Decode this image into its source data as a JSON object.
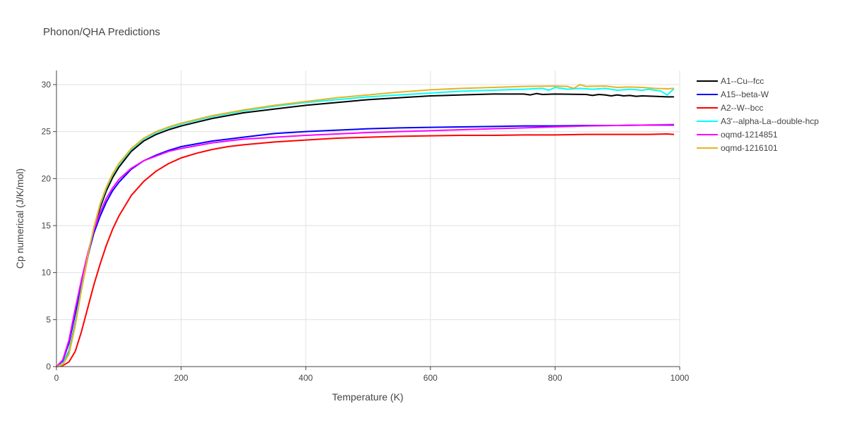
{
  "chart_data": {
    "type": "line",
    "title": "Phonon/QHA Predictions",
    "xlabel": "Temperature (K)",
    "ylabel": "Cp numerical (J/K/mol)",
    "xlim": [
      0,
      1000
    ],
    "ylim": [
      0,
      31.5
    ],
    "x_ticks": [
      0,
      200,
      400,
      600,
      800,
      1000
    ],
    "y_ticks": [
      0,
      5,
      10,
      15,
      20,
      25,
      30
    ],
    "grid": true,
    "legend_position": "right",
    "series": [
      {
        "name": "A1--Cu--fcc",
        "color": "#000000",
        "x": [
          0,
          10,
          20,
          30,
          40,
          50,
          60,
          70,
          80,
          90,
          100,
          120,
          140,
          160,
          180,
          200,
          225,
          250,
          275,
          300,
          350,
          400,
          450,
          500,
          550,
          600,
          650,
          700,
          750,
          760,
          770,
          780,
          800,
          850,
          860,
          870,
          880,
          890,
          900,
          910,
          920,
          930,
          940,
          960,
          980,
          990
        ],
        "y": [
          0,
          0.3,
          1.6,
          4.6,
          8.2,
          11.6,
          14.5,
          16.9,
          18.7,
          20.1,
          21.2,
          22.9,
          24.0,
          24.7,
          25.2,
          25.6,
          26.0,
          26.4,
          26.7,
          27.0,
          27.4,
          27.8,
          28.1,
          28.4,
          28.6,
          28.8,
          28.9,
          29.0,
          29.0,
          28.9,
          29.05,
          28.95,
          29.0,
          28.95,
          28.85,
          28.95,
          28.9,
          28.8,
          28.9,
          28.8,
          28.85,
          28.75,
          28.8,
          28.75,
          28.7,
          28.7
        ]
      },
      {
        "name": "A15--beta-W",
        "color": "#0000ff",
        "x": [
          0,
          10,
          20,
          30,
          40,
          50,
          60,
          70,
          80,
          90,
          100,
          120,
          140,
          160,
          180,
          200,
          225,
          250,
          275,
          300,
          350,
          400,
          450,
          500,
          550,
          600,
          650,
          700,
          750,
          800,
          850,
          900,
          950,
          990
        ],
        "y": [
          0,
          0.6,
          2.5,
          5.6,
          8.8,
          11.7,
          14.2,
          16.0,
          17.5,
          18.7,
          19.6,
          21.0,
          21.9,
          22.5,
          23.0,
          23.4,
          23.7,
          24.0,
          24.2,
          24.4,
          24.8,
          25.0,
          25.15,
          25.3,
          25.4,
          25.45,
          25.5,
          25.55,
          25.6,
          25.6,
          25.65,
          25.65,
          25.7,
          25.7
        ]
      },
      {
        "name": "A2--W--bcc",
        "color": "#ff0000",
        "x": [
          0,
          10,
          20,
          30,
          40,
          50,
          60,
          70,
          80,
          90,
          100,
          120,
          140,
          160,
          180,
          200,
          225,
          250,
          275,
          300,
          350,
          400,
          450,
          500,
          550,
          600,
          650,
          700,
          750,
          800,
          850,
          900,
          950,
          980,
          990
        ],
        "y": [
          0,
          0.1,
          0.5,
          1.6,
          3.7,
          6.2,
          8.7,
          10.9,
          12.9,
          14.6,
          16.0,
          18.2,
          19.7,
          20.8,
          21.6,
          22.2,
          22.7,
          23.1,
          23.4,
          23.6,
          23.9,
          24.1,
          24.3,
          24.4,
          24.5,
          24.55,
          24.6,
          24.6,
          24.65,
          24.65,
          24.7,
          24.7,
          24.7,
          24.75,
          24.7
        ]
      },
      {
        "name": "A3'--alpha-La--double-hcp",
        "color": "#00ffff",
        "x": [
          0,
          10,
          20,
          30,
          40,
          50,
          60,
          70,
          80,
          90,
          100,
          120,
          140,
          160,
          180,
          200,
          225,
          250,
          275,
          300,
          350,
          400,
          450,
          500,
          550,
          600,
          650,
          700,
          750,
          780,
          790,
          800,
          820,
          840,
          860,
          880,
          900,
          920,
          940,
          950,
          960,
          970,
          980,
          990
        ],
        "y": [
          0,
          0.3,
          1.5,
          4.5,
          8.3,
          11.8,
          14.8,
          17.2,
          19.0,
          20.4,
          21.5,
          23.1,
          24.2,
          24.9,
          25.4,
          25.8,
          26.2,
          26.6,
          26.9,
          27.2,
          27.7,
          28.1,
          28.4,
          28.7,
          28.9,
          29.1,
          29.3,
          29.4,
          29.5,
          29.6,
          29.4,
          29.7,
          29.5,
          29.6,
          29.5,
          29.6,
          29.4,
          29.5,
          29.4,
          29.5,
          29.4,
          29.3,
          28.9,
          29.5
        ]
      },
      {
        "name": "oqmd-1214851",
        "color": "#ff00ff",
        "x": [
          0,
          10,
          20,
          30,
          40,
          50,
          60,
          70,
          80,
          90,
          100,
          120,
          140,
          160,
          180,
          200,
          225,
          250,
          275,
          300,
          350,
          400,
          450,
          500,
          550,
          600,
          650,
          700,
          750,
          800,
          850,
          900,
          950,
          990
        ],
        "y": [
          0,
          0.7,
          2.8,
          6.1,
          9.2,
          12.0,
          14.5,
          16.4,
          17.9,
          19.0,
          19.9,
          21.1,
          21.9,
          22.4,
          22.9,
          23.2,
          23.5,
          23.8,
          24.0,
          24.2,
          24.4,
          24.6,
          24.75,
          24.9,
          25.0,
          25.1,
          25.2,
          25.3,
          25.4,
          25.5,
          25.6,
          25.65,
          25.7,
          25.75
        ]
      },
      {
        "name": "oqmd-1216101",
        "color": "#e6b422",
        "x": [
          0,
          10,
          20,
          30,
          40,
          50,
          60,
          70,
          80,
          90,
          100,
          120,
          140,
          160,
          180,
          200,
          225,
          250,
          275,
          300,
          350,
          400,
          450,
          500,
          550,
          600,
          650,
          700,
          750,
          800,
          820,
          830,
          840,
          850,
          880,
          900,
          920,
          940,
          960,
          980,
          990
        ],
        "y": [
          0,
          0.2,
          1.3,
          4.3,
          8.1,
          11.7,
          14.8,
          17.3,
          19.1,
          20.5,
          21.6,
          23.2,
          24.3,
          25.0,
          25.5,
          25.9,
          26.3,
          26.7,
          27.0,
          27.3,
          27.8,
          28.2,
          28.6,
          28.9,
          29.2,
          29.45,
          29.6,
          29.7,
          29.8,
          29.85,
          29.8,
          29.6,
          30.0,
          29.8,
          29.85,
          29.7,
          29.75,
          29.7,
          29.6,
          29.55,
          29.6
        ]
      }
    ]
  }
}
